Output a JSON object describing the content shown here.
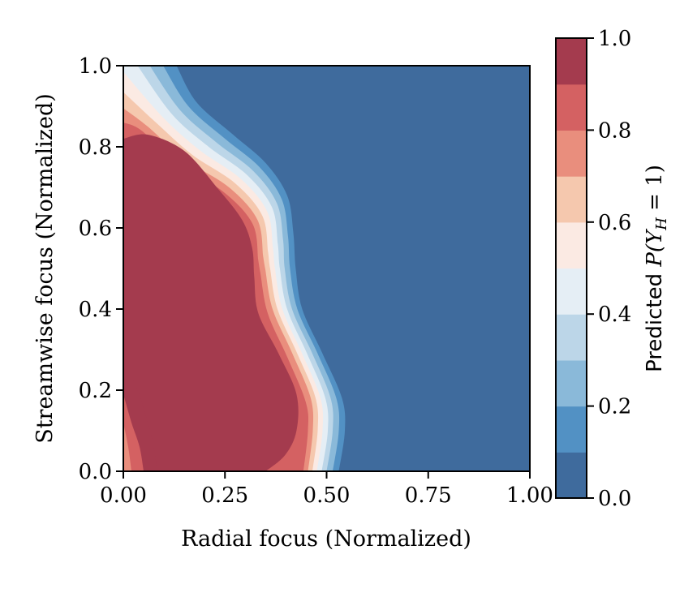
{
  "chart_data": {
    "type": "contour",
    "xlabel": "Radial focus (Normalized)",
    "ylabel": "Streamwise focus (Normalized)",
    "xlim": [
      0,
      1
    ],
    "ylim": [
      0,
      1
    ],
    "xticks": [
      "0.00",
      "0.25",
      "0.50",
      "0.75",
      "1.00"
    ],
    "yticks": [
      "0.0",
      "0.2",
      "0.4",
      "0.6",
      "0.8",
      "1.0"
    ],
    "colorbar": {
      "label": "Predicted P(Y_H = 1)",
      "label_prefix": "Predicted ",
      "label_math": "P(Y",
      "label_sub": "H",
      "label_suffix": " = 1)",
      "range": [
        0,
        1
      ],
      "ticks": [
        "0.0",
        "0.2",
        "0.4",
        "0.6",
        "0.8",
        "1.0"
      ],
      "levels": [
        0.0,
        0.1,
        0.2,
        0.3,
        0.4,
        0.5,
        0.6,
        0.7,
        0.8,
        0.9,
        1.0
      ],
      "colors": [
        "#3f6b9d",
        "#5291c4",
        "#8ab9d9",
        "#bcd6e8",
        "#e5eef5",
        "#fbeae3",
        "#f5c8ae",
        "#e98e7d",
        "#d46162",
        "#a43b4e"
      ]
    },
    "contour_boundaries": [
      {
        "level": 0.1,
        "points": [
          [
            0.131,
            1.0
          ],
          [
            0.18,
            0.91
          ],
          [
            0.27,
            0.83
          ],
          [
            0.35,
            0.76
          ],
          [
            0.403,
            0.68
          ],
          [
            0.418,
            0.59
          ],
          [
            0.424,
            0.5
          ],
          [
            0.44,
            0.4
          ],
          [
            0.49,
            0.29
          ],
          [
            0.538,
            0.18
          ],
          [
            0.545,
            0.1
          ],
          [
            0.53,
            0.0
          ]
        ]
      },
      {
        "level": 0.2,
        "points": [
          [
            0.098,
            1.0
          ],
          [
            0.16,
            0.9
          ],
          [
            0.25,
            0.82
          ],
          [
            0.335,
            0.75
          ],
          [
            0.39,
            0.67
          ],
          [
            0.405,
            0.58
          ],
          [
            0.41,
            0.5
          ],
          [
            0.428,
            0.4
          ],
          [
            0.478,
            0.29
          ],
          [
            0.524,
            0.18
          ],
          [
            0.53,
            0.1
          ],
          [
            0.515,
            0.0
          ]
        ]
      },
      {
        "level": 0.3,
        "points": [
          [
            0.065,
            1.0
          ],
          [
            0.14,
            0.89
          ],
          [
            0.23,
            0.81
          ],
          [
            0.32,
            0.74
          ],
          [
            0.378,
            0.66
          ],
          [
            0.393,
            0.57
          ],
          [
            0.397,
            0.5
          ],
          [
            0.415,
            0.4
          ],
          [
            0.465,
            0.29
          ],
          [
            0.51,
            0.18
          ],
          [
            0.515,
            0.1
          ],
          [
            0.5,
            0.0
          ]
        ]
      },
      {
        "level": 0.4,
        "points": [
          [
            0.035,
            1.0
          ],
          [
            0.12,
            0.88
          ],
          [
            0.21,
            0.8
          ],
          [
            0.305,
            0.73
          ],
          [
            0.366,
            0.65
          ],
          [
            0.38,
            0.56
          ],
          [
            0.385,
            0.5
          ],
          [
            0.403,
            0.4
          ],
          [
            0.452,
            0.29
          ],
          [
            0.497,
            0.18
          ],
          [
            0.503,
            0.1
          ],
          [
            0.488,
            0.0
          ]
        ]
      },
      {
        "level": 0.5,
        "points": [
          [
            0.0,
            0.985
          ],
          [
            0.1,
            0.87
          ],
          [
            0.19,
            0.79
          ],
          [
            0.29,
            0.72
          ],
          [
            0.354,
            0.64
          ],
          [
            0.368,
            0.55
          ],
          [
            0.373,
            0.5
          ],
          [
            0.391,
            0.4
          ],
          [
            0.44,
            0.29
          ],
          [
            0.485,
            0.18
          ],
          [
            0.49,
            0.1
          ],
          [
            0.476,
            0.0
          ]
        ]
      },
      {
        "level": 0.6,
        "points": [
          [
            0.0,
            0.935
          ],
          [
            0.08,
            0.86
          ],
          [
            0.17,
            0.78
          ],
          [
            0.275,
            0.71
          ],
          [
            0.342,
            0.63
          ],
          [
            0.356,
            0.54
          ],
          [
            0.361,
            0.5
          ],
          [
            0.379,
            0.4
          ],
          [
            0.428,
            0.29
          ],
          [
            0.473,
            0.18
          ],
          [
            0.478,
            0.1
          ],
          [
            0.465,
            0.0
          ]
        ]
      },
      {
        "level": 0.7,
        "points": [
          [
            0.0,
            0.895
          ],
          [
            0.06,
            0.85
          ],
          [
            0.15,
            0.77
          ],
          [
            0.26,
            0.7
          ],
          [
            0.33,
            0.62
          ],
          [
            0.344,
            0.53
          ],
          [
            0.349,
            0.5
          ],
          [
            0.367,
            0.4
          ],
          [
            0.416,
            0.29
          ],
          [
            0.461,
            0.18
          ],
          [
            0.466,
            0.1
          ],
          [
            0.454,
            0.0
          ]
        ]
      },
      {
        "level": 0.8,
        "points": [
          [
            0.0,
            0.86
          ],
          [
            0.045,
            0.84
          ],
          [
            0.13,
            0.76
          ],
          [
            0.245,
            0.69
          ],
          [
            0.318,
            0.61
          ],
          [
            0.332,
            0.52
          ],
          [
            0.337,
            0.49
          ],
          [
            0.355,
            0.39
          ],
          [
            0.404,
            0.28
          ],
          [
            0.449,
            0.17
          ],
          [
            0.454,
            0.1
          ],
          [
            0.443,
            0.0
          ]
        ]
      },
      {
        "level": 0.9,
        "points": [
          [
            0.0,
            0.82
          ],
          [
            0.06,
            0.83
          ],
          [
            0.15,
            0.79
          ],
          [
            0.23,
            0.7
          ],
          [
            0.292,
            0.62
          ],
          [
            0.317,
            0.55
          ],
          [
            0.322,
            0.48
          ],
          [
            0.332,
            0.39
          ],
          [
            0.382,
            0.29
          ],
          [
            0.426,
            0.19
          ],
          [
            0.426,
            0.1
          ],
          [
            0.398,
            0.04
          ],
          [
            0.35,
            0.0
          ]
        ]
      }
    ],
    "low_corner_bands": [
      {
        "level": 0.9,
        "points": [
          [
            0.0,
            0.27
          ],
          [
            0.035,
            0.2
          ],
          [
            0.06,
            0.12
          ],
          [
            0.075,
            0.06
          ],
          [
            0.083,
            0.0
          ]
        ]
      },
      {
        "level": 0.8,
        "points": [
          [
            0.0,
            0.19
          ],
          [
            0.02,
            0.12
          ],
          [
            0.04,
            0.06
          ],
          [
            0.05,
            0.0
          ]
        ]
      },
      {
        "level": 0.7,
        "points": [
          [
            0.0,
            0.12
          ],
          [
            0.012,
            0.06
          ],
          [
            0.02,
            0.0
          ]
        ]
      }
    ]
  }
}
